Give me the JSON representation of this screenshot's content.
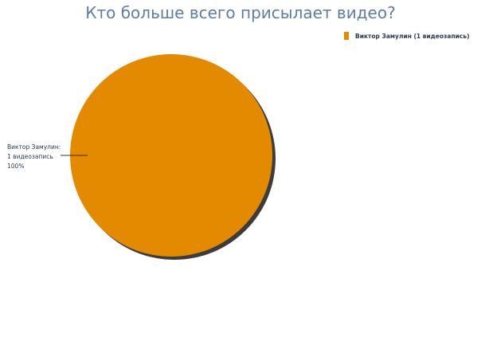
{
  "chart_data": {
    "type": "pie",
    "title": "Кто больше всего присылает видео?",
    "slices": [
      {
        "name": "Виктор Замулин",
        "value": 1,
        "percent": 100,
        "color": "#e48a00",
        "legend_label": "Виктор Замулин (1 видеозапись)",
        "data_label": [
          "Виктор Замулин:",
          "1 видеозапись",
          "100%"
        ]
      }
    ],
    "legend_placement": "top-right"
  }
}
